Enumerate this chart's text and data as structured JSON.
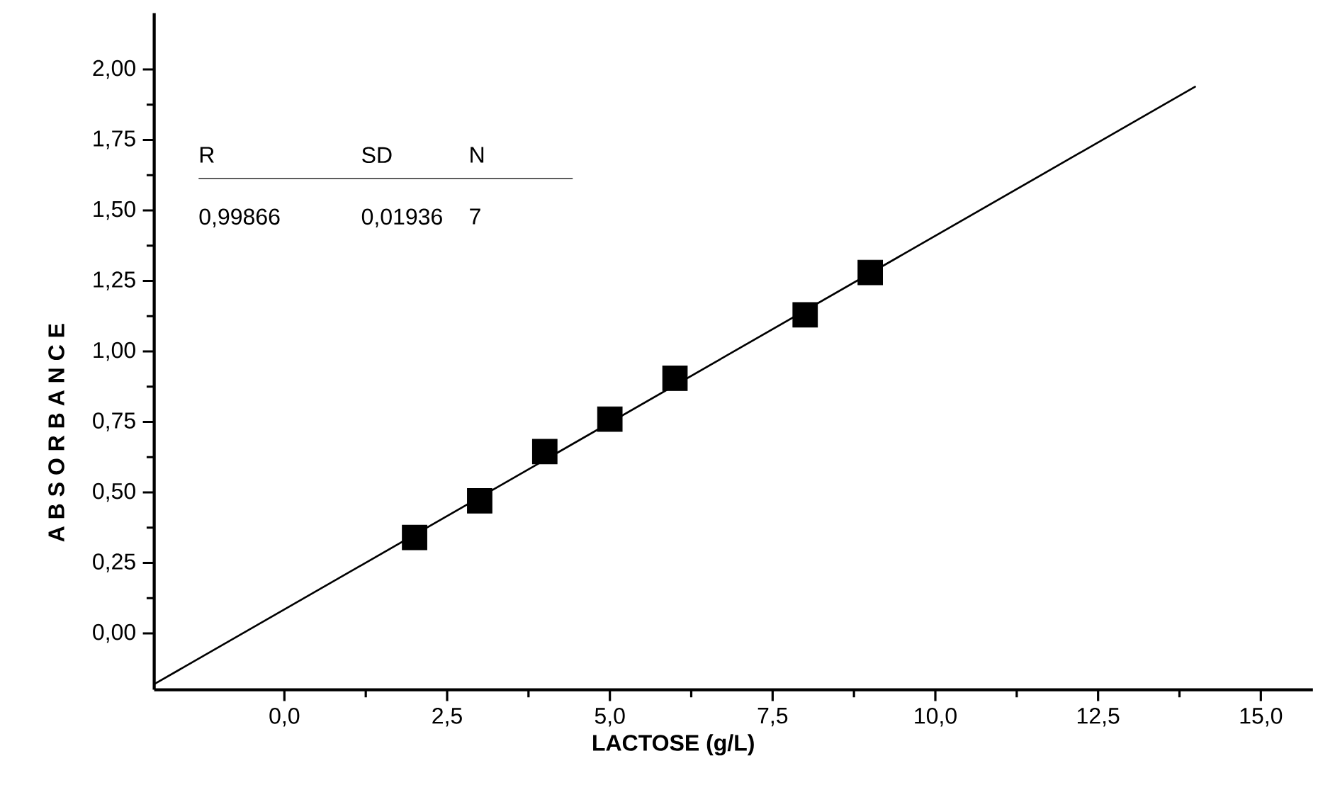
{
  "chart_data": {
    "type": "scatter",
    "xlabel": "LACTOSE (g/L)",
    "ylabel": "A B S O R B A N C E",
    "xlim": [
      -2,
      15.8
    ],
    "ylim": [
      -0.2,
      2.2
    ],
    "xticks": [
      {
        "value": 0,
        "label": "0,0"
      },
      {
        "value": 2.5,
        "label": "2,5"
      },
      {
        "value": 5,
        "label": "5,0"
      },
      {
        "value": 7.5,
        "label": "7,5"
      },
      {
        "value": 10,
        "label": "10,0"
      },
      {
        "value": 12.5,
        "label": "12,5"
      },
      {
        "value": 15,
        "label": "15,0"
      }
    ],
    "yticks": [
      {
        "value": 0,
        "label": "0,00"
      },
      {
        "value": 0.25,
        "label": "0,25"
      },
      {
        "value": 0.5,
        "label": "0,50"
      },
      {
        "value": 0.75,
        "label": "0,75"
      },
      {
        "value": 1,
        "label": "1,00"
      },
      {
        "value": 1.25,
        "label": "1,25"
      },
      {
        "value": 1.5,
        "label": "1,50"
      },
      {
        "value": 1.75,
        "label": "1,75"
      },
      {
        "value": 2,
        "label": "2,00"
      }
    ],
    "series": [
      {
        "marker": "square",
        "color": "#000000",
        "x": [
          2,
          3,
          4,
          5,
          6,
          8,
          9
        ],
        "values": [
          0.34,
          0.47,
          0.645,
          0.76,
          0.905,
          1.13,
          1.28
        ]
      },
      {
        "type": "line",
        "marker": "none",
        "line_style": "solid",
        "color": "#000000",
        "x": [
          -2,
          14
        ],
        "values": [
          -0.18,
          1.94
        ]
      }
    ],
    "annotations": [
      "R",
      "SD",
      "N",
      "0,99866",
      "0,01936",
      "7"
    ]
  }
}
